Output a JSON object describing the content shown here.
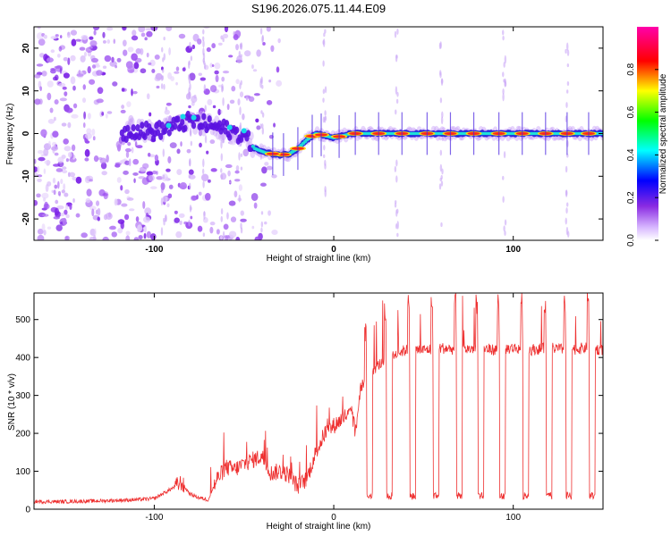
{
  "title": "S196.2026.075.11.44.E09",
  "colors": {
    "line": "#ee3030",
    "frame": "#000000",
    "background": "#ffffff"
  },
  "chart_data": [
    {
      "type": "heatmap",
      "name": "spectrogram",
      "title": "S196.2026.075.11.44.E09",
      "xlabel": "Height of straight line (km)",
      "ylabel": "Frequency (Hz)",
      "xlim": [
        -167,
        150
      ],
      "ylim": [
        -25,
        25
      ],
      "xticks": [
        -100,
        0,
        100
      ],
      "yticks": [
        -20,
        -10,
        0,
        10,
        20
      ],
      "colorbar": {
        "label": "Normalized spectral amplitude",
        "range": [
          0,
          1
        ],
        "ticks": [
          0.0,
          0.2,
          0.4,
          0.6,
          0.8
        ],
        "tick_labels": [
          "0.0",
          "0.2",
          "0.4",
          "0.6",
          "0.8"
        ],
        "colormap": [
          "#ffffff",
          "#8a2be2",
          "#0000ff",
          "#00ffff",
          "#00ff00",
          "#ffff00",
          "#ff0000",
          "#ff00aa"
        ]
      },
      "ridge": {
        "description": "carrier frequency track",
        "points": [
          [
            -115,
            1.0
          ],
          [
            -100,
            0.5
          ],
          [
            -90,
            1.5
          ],
          [
            -80,
            3.0
          ],
          [
            -70,
            2.0
          ],
          [
            -60,
            1.0
          ],
          [
            -50,
            -0.5
          ],
          [
            -44,
            -3.5
          ],
          [
            -38,
            -4.5
          ],
          [
            -30,
            -5.0
          ],
          [
            -25,
            -4.8
          ],
          [
            -20,
            -3.5
          ],
          [
            -15,
            -1.5
          ],
          [
            -10,
            0.0
          ],
          [
            -5,
            -0.5
          ],
          [
            0,
            -1.0
          ],
          [
            5,
            -0.5
          ],
          [
            10,
            0.0
          ],
          [
            20,
            0.0
          ],
          [
            60,
            0.0
          ],
          [
            100,
            0.0
          ],
          [
            150,
            0.0
          ]
        ],
        "pulses_x": [
          25,
          38,
          52,
          65,
          78,
          92,
          105,
          118,
          130,
          142
        ]
      }
    },
    {
      "type": "line",
      "name": "snr",
      "xlabel": "Height of straight line (km)",
      "ylabel": "SNR (10 * v/v)",
      "xlim": [
        -167,
        150
      ],
      "ylim": [
        0,
        570
      ],
      "xticks": [
        -100,
        0,
        100
      ],
      "yticks": [
        0,
        100,
        200,
        300,
        400,
        500
      ],
      "series": [
        {
          "name": "SNR",
          "color": "#ee3030",
          "x": [
            -167,
            -150,
            -130,
            -110,
            -100,
            -90,
            -85,
            -80,
            -75,
            -70,
            -65,
            -60,
            -55,
            -50,
            -45,
            -40,
            -35,
            -30,
            -25,
            -20,
            -15,
            -10,
            -5,
            0,
            5,
            10,
            12,
            15,
            20,
            25,
            30,
            35,
            40,
            50,
            60,
            70,
            80,
            90,
            100,
            110,
            120,
            130,
            140,
            150
          ],
          "y": [
            20,
            20,
            22,
            25,
            28,
            55,
            70,
            40,
            30,
            25,
            80,
            110,
            105,
            120,
            130,
            140,
            95,
            100,
            90,
            60,
            80,
            150,
            200,
            220,
            240,
            260,
            200,
            320,
            360,
            380,
            400,
            410,
            420,
            420,
            425,
            420,
            425,
            420,
            425,
            420,
            425,
            420,
            425,
            420
          ]
        }
      ],
      "dropouts": {
        "x": [
          20,
          31,
          44,
          57,
          70,
          82,
          94,
          107,
          120,
          131,
          144
        ],
        "y": 25
      }
    }
  ]
}
